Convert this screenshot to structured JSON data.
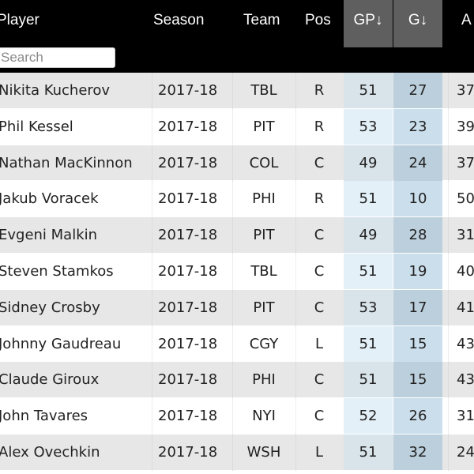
{
  "table": {
    "headers": {
      "player": "Player",
      "season": "Season",
      "team": "Team",
      "pos": "Pos",
      "gp": "GP↓",
      "g": "G↓",
      "a": "A"
    },
    "search_placeholder": "Search",
    "rows": [
      {
        "player": "Nikita Kucherov",
        "season": "2017-18",
        "team": "TBL",
        "pos": "R",
        "gp": "51",
        "g": "27",
        "a": "37"
      },
      {
        "player": "Phil Kessel",
        "season": "2017-18",
        "team": "PIT",
        "pos": "R",
        "gp": "53",
        "g": "23",
        "a": "39"
      },
      {
        "player": "Nathan MacKinnon",
        "season": "2017-18",
        "team": "COL",
        "pos": "C",
        "gp": "49",
        "g": "24",
        "a": "37"
      },
      {
        "player": "Jakub Voracek",
        "season": "2017-18",
        "team": "PHI",
        "pos": "R",
        "gp": "51",
        "g": "10",
        "a": "50"
      },
      {
        "player": "Evgeni Malkin",
        "season": "2017-18",
        "team": "PIT",
        "pos": "C",
        "gp": "49",
        "g": "28",
        "a": "31"
      },
      {
        "player": "Steven Stamkos",
        "season": "2017-18",
        "team": "TBL",
        "pos": "C",
        "gp": "51",
        "g": "19",
        "a": "40"
      },
      {
        "player": "Sidney Crosby",
        "season": "2017-18",
        "team": "PIT",
        "pos": "C",
        "gp": "53",
        "g": "17",
        "a": "41"
      },
      {
        "player": "Johnny Gaudreau",
        "season": "2017-18",
        "team": "CGY",
        "pos": "L",
        "gp": "51",
        "g": "15",
        "a": "43"
      },
      {
        "player": "Claude Giroux",
        "season": "2017-18",
        "team": "PHI",
        "pos": "C",
        "gp": "51",
        "g": "15",
        "a": "43"
      },
      {
        "player": "John Tavares",
        "season": "2017-18",
        "team": "NYI",
        "pos": "C",
        "gp": "52",
        "g": "26",
        "a": "31"
      },
      {
        "player": "Alex Ovechkin",
        "season": "2017-18",
        "team": "WSH",
        "pos": "L",
        "gp": "51",
        "g": "32",
        "a": "24"
      }
    ]
  }
}
